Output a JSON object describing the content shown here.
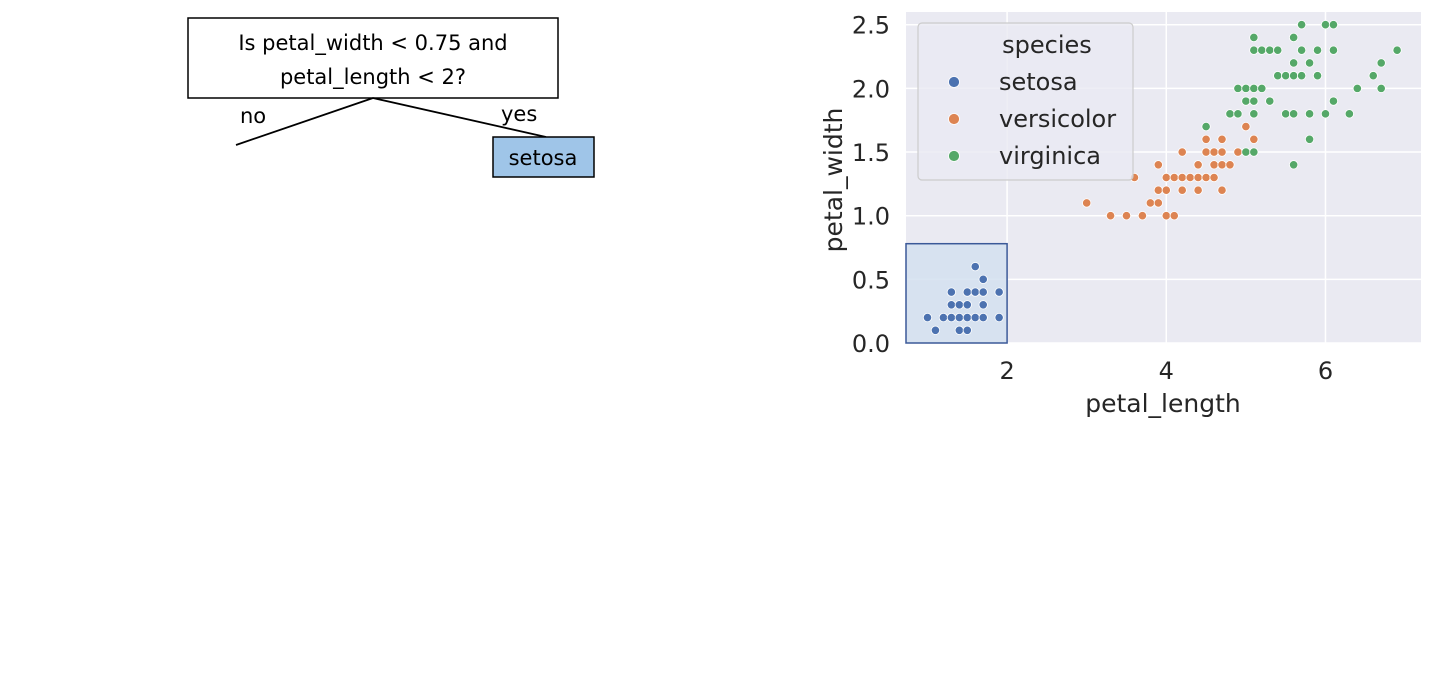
{
  "decision_tree": {
    "question_line1": "Is petal_width < 0.75 and",
    "question_line2": "petal_length < 2?",
    "no_label": "no",
    "yes_label": "yes",
    "yes_leaf": "setosa",
    "leaf_color": "#9fc5e8"
  },
  "chart_data": {
    "type": "scatter",
    "xlabel": "petal_length",
    "ylabel": "petal_width",
    "xlim": [
      0.73,
      7.2
    ],
    "ylim": [
      0.0,
      2.6
    ],
    "xticks": [
      2,
      4,
      6
    ],
    "xtick_labels": [
      "2",
      "4",
      "6"
    ],
    "yticks": [
      0.0,
      0.5,
      1.0,
      1.5,
      2.0,
      2.5
    ],
    "ytick_labels": [
      "0.0",
      "0.5",
      "1.0",
      "1.5",
      "2.0",
      "2.5"
    ],
    "grid": true,
    "legend_title": "species",
    "legend_position": "top-left",
    "highlight_region": {
      "x": [
        0.73,
        2.0
      ],
      "y": [
        0.0,
        0.78
      ],
      "fill": "#d4e0f0",
      "stroke": "#3b5998"
    },
    "series": [
      {
        "name": "setosa",
        "color": "#4c72b0",
        "points": [
          [
            1.0,
            0.2
          ],
          [
            1.1,
            0.1
          ],
          [
            1.2,
            0.2
          ],
          [
            1.3,
            0.2
          ],
          [
            1.3,
            0.3
          ],
          [
            1.3,
            0.4
          ],
          [
            1.4,
            0.1
          ],
          [
            1.4,
            0.2
          ],
          [
            1.4,
            0.3
          ],
          [
            1.5,
            0.1
          ],
          [
            1.5,
            0.2
          ],
          [
            1.5,
            0.3
          ],
          [
            1.5,
            0.4
          ],
          [
            1.6,
            0.2
          ],
          [
            1.6,
            0.4
          ],
          [
            1.6,
            0.6
          ],
          [
            1.7,
            0.2
          ],
          [
            1.7,
            0.3
          ],
          [
            1.7,
            0.4
          ],
          [
            1.7,
            0.5
          ],
          [
            1.9,
            0.2
          ],
          [
            1.9,
            0.4
          ]
        ]
      },
      {
        "name": "versicolor",
        "color": "#dd8452",
        "points": [
          [
            3.0,
            1.1
          ],
          [
            3.3,
            1.0
          ],
          [
            3.5,
            1.0
          ],
          [
            3.6,
            1.3
          ],
          [
            3.7,
            1.0
          ],
          [
            3.8,
            1.1
          ],
          [
            3.9,
            1.1
          ],
          [
            3.9,
            1.2
          ],
          [
            3.9,
            1.4
          ],
          [
            4.0,
            1.0
          ],
          [
            4.0,
            1.2
          ],
          [
            4.0,
            1.3
          ],
          [
            4.1,
            1.0
          ],
          [
            4.1,
            1.3
          ],
          [
            4.2,
            1.2
          ],
          [
            4.2,
            1.3
          ],
          [
            4.2,
            1.5
          ],
          [
            4.3,
            1.3
          ],
          [
            4.4,
            1.2
          ],
          [
            4.4,
            1.3
          ],
          [
            4.4,
            1.4
          ],
          [
            4.5,
            1.3
          ],
          [
            4.5,
            1.5
          ],
          [
            4.5,
            1.6
          ],
          [
            4.6,
            1.3
          ],
          [
            4.6,
            1.4
          ],
          [
            4.6,
            1.5
          ],
          [
            4.7,
            1.2
          ],
          [
            4.7,
            1.4
          ],
          [
            4.7,
            1.5
          ],
          [
            4.7,
            1.6
          ],
          [
            4.8,
            1.4
          ],
          [
            4.8,
            1.8
          ],
          [
            4.9,
            1.5
          ],
          [
            5.0,
            1.7
          ],
          [
            5.1,
            1.6
          ]
        ]
      },
      {
        "name": "virginica",
        "color": "#55a868",
        "points": [
          [
            4.5,
            1.7
          ],
          [
            4.8,
            1.8
          ],
          [
            4.9,
            1.8
          ],
          [
            4.9,
            2.0
          ],
          [
            5.0,
            1.5
          ],
          [
            5.0,
            1.9
          ],
          [
            5.0,
            2.0
          ],
          [
            5.1,
            1.5
          ],
          [
            5.1,
            1.8
          ],
          [
            5.1,
            1.9
          ],
          [
            5.1,
            2.0
          ],
          [
            5.1,
            2.3
          ],
          [
            5.1,
            2.4
          ],
          [
            5.2,
            2.0
          ],
          [
            5.2,
            2.3
          ],
          [
            5.3,
            1.9
          ],
          [
            5.3,
            2.3
          ],
          [
            5.4,
            2.1
          ],
          [
            5.4,
            2.3
          ],
          [
            5.5,
            1.8
          ],
          [
            5.5,
            2.1
          ],
          [
            5.6,
            1.4
          ],
          [
            5.6,
            1.8
          ],
          [
            5.6,
            2.1
          ],
          [
            5.6,
            2.2
          ],
          [
            5.6,
            2.4
          ],
          [
            5.7,
            2.1
          ],
          [
            5.7,
            2.3
          ],
          [
            5.7,
            2.5
          ],
          [
            5.8,
            1.6
          ],
          [
            5.8,
            1.8
          ],
          [
            5.8,
            2.2
          ],
          [
            5.9,
            2.1
          ],
          [
            5.9,
            2.3
          ],
          [
            6.0,
            1.8
          ],
          [
            6.0,
            2.5
          ],
          [
            6.1,
            1.9
          ],
          [
            6.1,
            2.3
          ],
          [
            6.1,
            2.5
          ],
          [
            6.3,
            1.8
          ],
          [
            6.4,
            2.0
          ],
          [
            6.6,
            2.1
          ],
          [
            6.7,
            2.0
          ],
          [
            6.7,
            2.2
          ],
          [
            6.9,
            2.3
          ]
        ]
      }
    ]
  }
}
